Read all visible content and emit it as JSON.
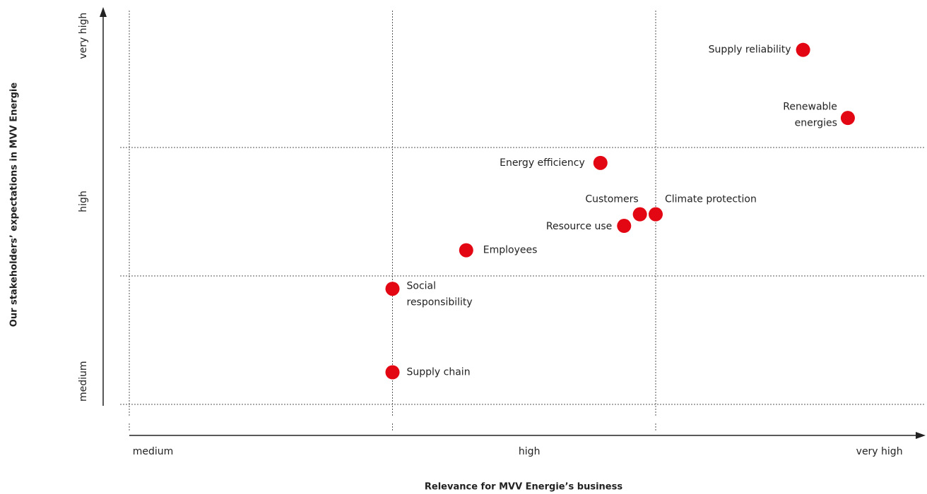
{
  "chart_data": {
    "type": "scatter",
    "x_label": "Relevance for MVV Energie’s business",
    "y_label": "Our stakeholders’ expectations in MVV Energie",
    "xlim": [
      0,
      3
    ],
    "ylim": [
      0,
      3
    ],
    "xticks": [
      {
        "value": 0.09,
        "label": "medium"
      },
      {
        "value": 1.52,
        "label": "high"
      },
      {
        "value": 2.85,
        "label": "very high"
      }
    ],
    "yticks": [
      {
        "value": 0.18,
        "label": "medium"
      },
      {
        "value": 1.58,
        "label": "high"
      },
      {
        "value": 2.87,
        "label": "very high"
      }
    ],
    "xgrid": [
      0,
      1,
      2
    ],
    "ygrid": [
      0,
      1,
      2
    ],
    "color": "#e30613",
    "series": [
      {
        "names": [
          "Supply reliability",
          "Renewable energies",
          "Energy efficiency",
          "Customers",
          "Climate protection",
          "Resource use",
          "Employees",
          "Social responsibility",
          "Supply chain"
        ],
        "x": [
          2.56,
          2.73,
          1.79,
          1.94,
          2.0,
          1.88,
          1.28,
          1.0,
          1.0
        ],
        "values": [
          2.76,
          2.23,
          1.88,
          1.48,
          1.48,
          1.39,
          1.2,
          0.9,
          0.25
        ]
      }
    ]
  }
}
